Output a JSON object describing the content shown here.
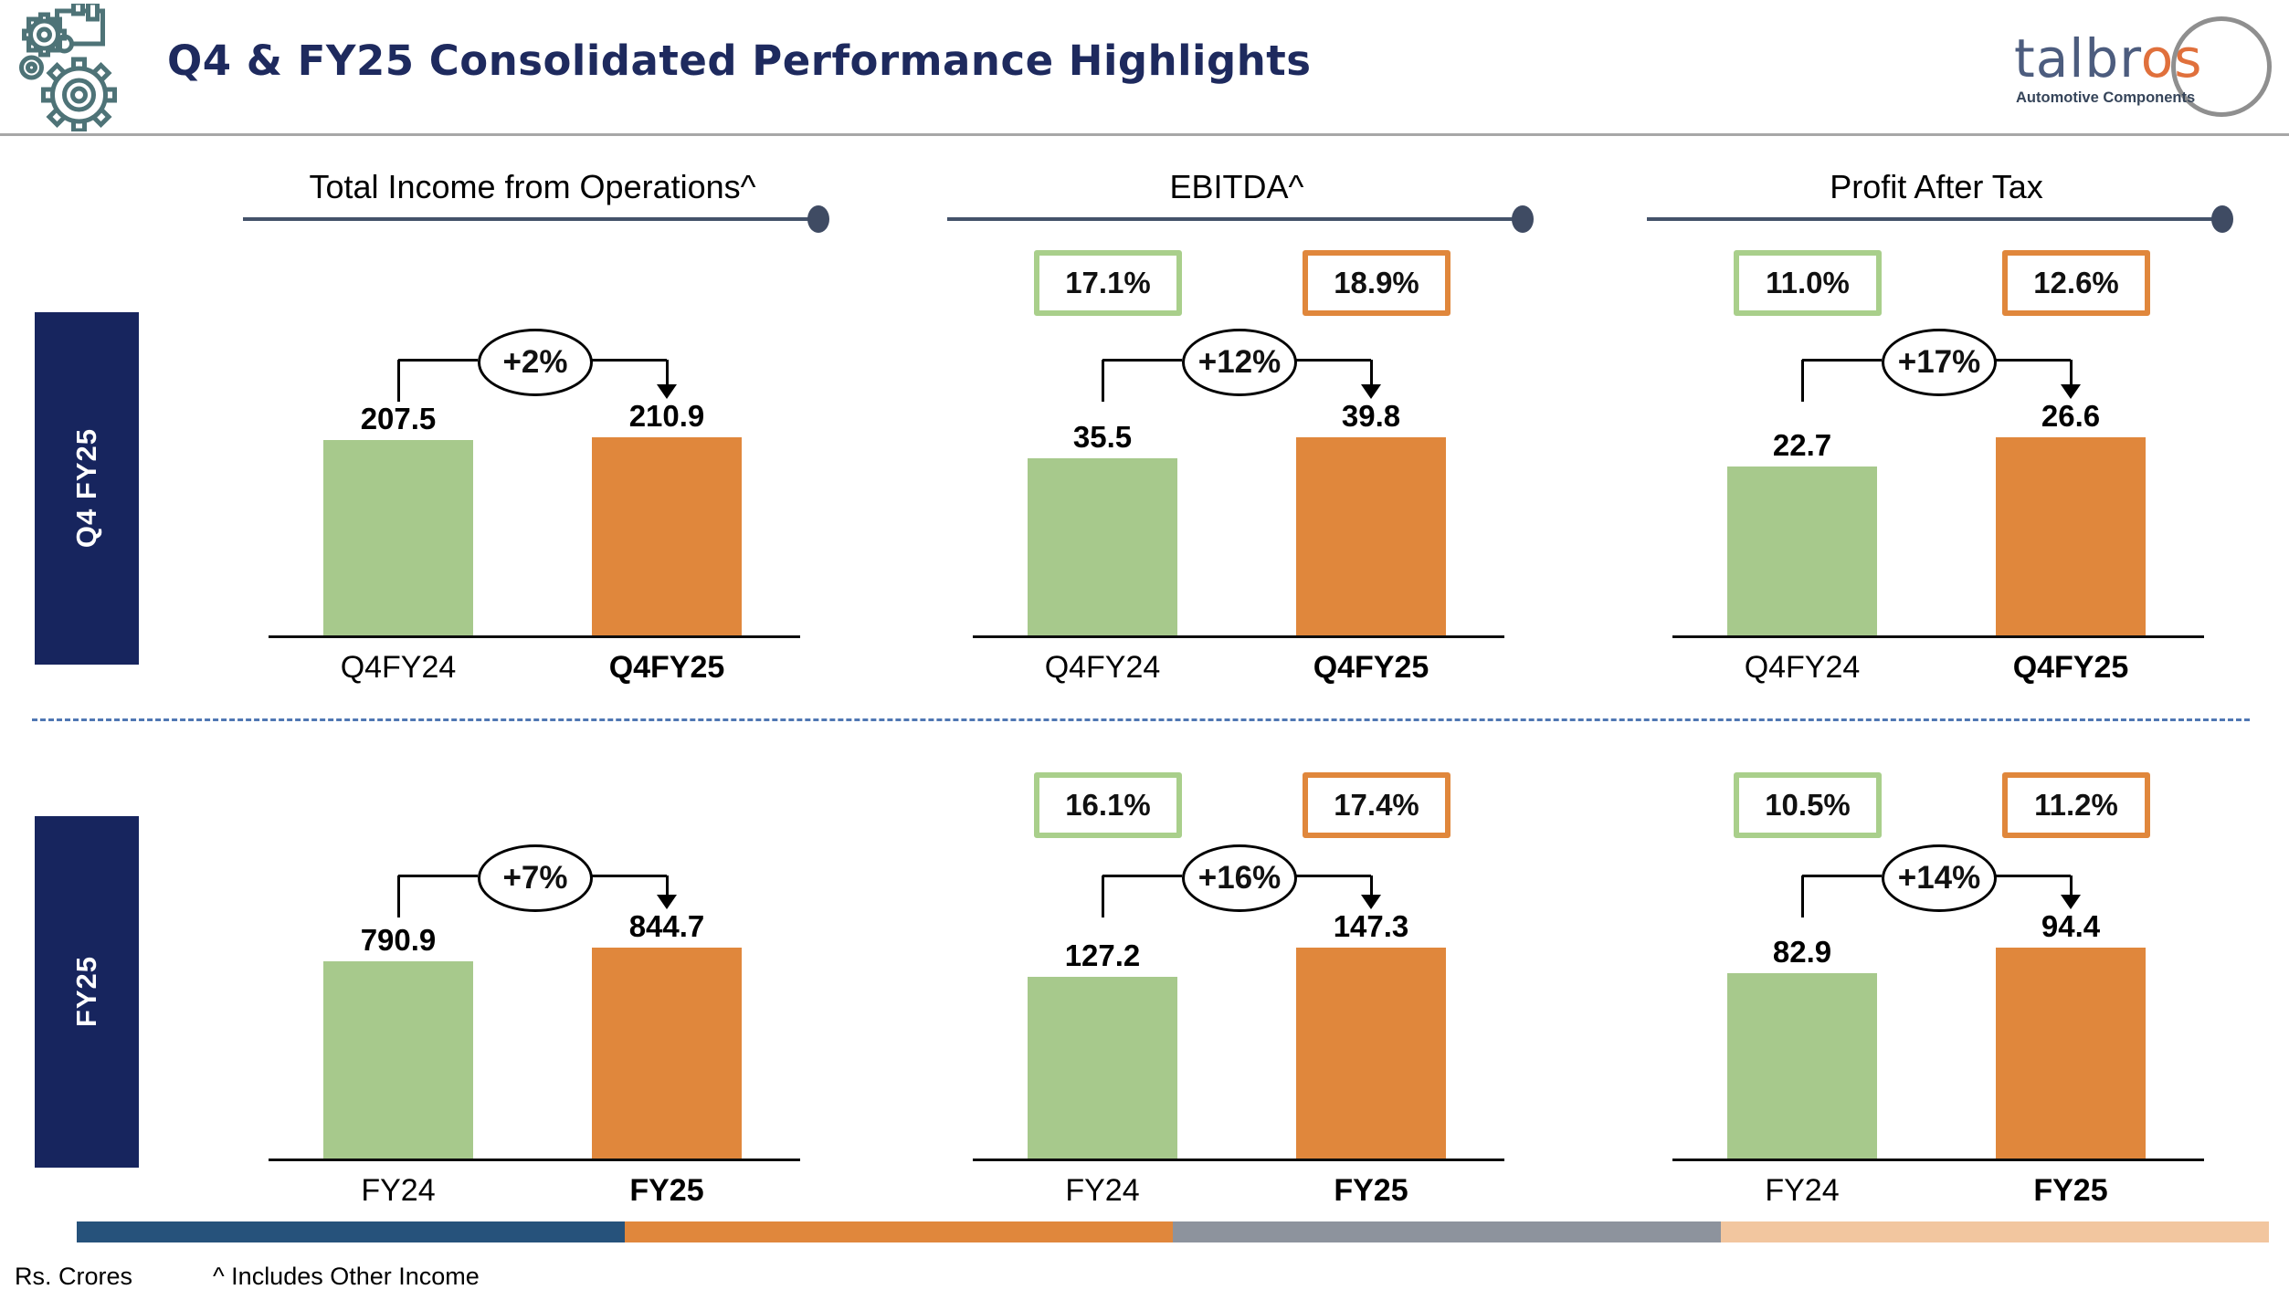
{
  "header": {
    "title": "Q4 & FY25 Consolidated Performance Highlights"
  },
  "logo": {
    "wordmark_left": "talbr",
    "wordmark_right": "os",
    "tagline": "Automotive Components"
  },
  "columns": [
    {
      "title": "Total Income from Operations^"
    },
    {
      "title": "EBITDA^"
    },
    {
      "title": "Profit After Tax"
    }
  ],
  "row_labels": [
    {
      "label": "Q4 FY25"
    },
    {
      "label": "FY25"
    }
  ],
  "footer": {
    "unit_note": "Rs. Crores",
    "income_note": "^ Includes Other Income"
  },
  "colors": {
    "navy_box": "#17255e",
    "title_navy": "#1e2a5e",
    "green_bar": "#a7c98c",
    "orange_bar": "#e0873c",
    "green_badge_border": "#a9cf8b",
    "orange_badge_border": "#e0873c",
    "slate_underline": "#44526a",
    "dashed_divider_blue": "#4f77b3",
    "icon_teal": "#4e7377",
    "logo_blue": "#4c5c7e",
    "logo_orange": "#e0703c",
    "footer_segments": [
      "#26527b",
      "#e0873c",
      "#8d939d",
      "#f2c69f"
    ]
  },
  "chart_data": [
    {
      "type": "bar",
      "metric": "Total Income from Operations^",
      "period": "Q4 FY25",
      "categories": [
        "Q4FY24",
        "Q4FY25"
      ],
      "values": [
        207.5,
        210.9
      ],
      "growth_label": "+2%",
      "margin_labels": null,
      "unit": "Rs. Crores"
    },
    {
      "type": "bar",
      "metric": "EBITDA^",
      "period": "Q4 FY25",
      "categories": [
        "Q4FY24",
        "Q4FY25"
      ],
      "values": [
        35.5,
        39.8
      ],
      "growth_label": "+12%",
      "margin_labels": [
        "17.1%",
        "18.9%"
      ],
      "unit": "Rs. Crores"
    },
    {
      "type": "bar",
      "metric": "Profit After Tax",
      "period": "Q4 FY25",
      "categories": [
        "Q4FY24",
        "Q4FY25"
      ],
      "values": [
        22.7,
        26.6
      ],
      "growth_label": "+17%",
      "margin_labels": [
        "11.0%",
        "12.6%"
      ],
      "unit": "Rs. Crores"
    },
    {
      "type": "bar",
      "metric": "Total Income from Operations^",
      "period": "FY25",
      "categories": [
        "FY24",
        "FY25"
      ],
      "values": [
        790.9,
        844.7
      ],
      "growth_label": "+7%",
      "margin_labels": null,
      "unit": "Rs. Crores"
    },
    {
      "type": "bar",
      "metric": "EBITDA^",
      "period": "FY25",
      "categories": [
        "FY24",
        "FY25"
      ],
      "values": [
        127.2,
        147.3
      ],
      "growth_label": "+16%",
      "margin_labels": [
        "16.1%",
        "17.4%"
      ],
      "unit": "Rs. Crores"
    },
    {
      "type": "bar",
      "metric": "Profit After Tax",
      "period": "FY25",
      "categories": [
        "FY24",
        "FY25"
      ],
      "values": [
        82.9,
        94.4
      ],
      "growth_label": "+14%",
      "margin_labels": [
        "10.5%",
        "11.2%"
      ],
      "unit": "Rs. Crores"
    }
  ]
}
